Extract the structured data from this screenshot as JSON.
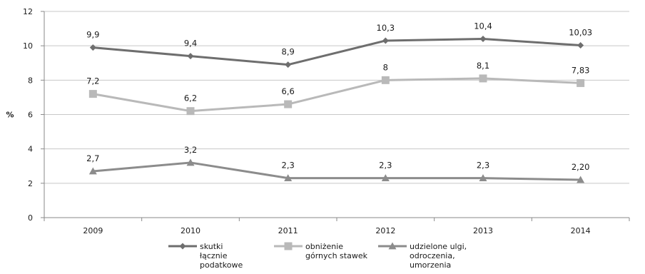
{
  "chart_data": {
    "type": "line",
    "categories": [
      "2009",
      "2010",
      "2011",
      "2012",
      "2013",
      "2014"
    ],
    "ylabel": "%",
    "ylim": [
      0,
      12
    ],
    "yticks": [
      0,
      2,
      4,
      6,
      8,
      10,
      12
    ],
    "grid": true,
    "legend_position": "bottom",
    "series": [
      {
        "name": "skutki łącznie podatkowe",
        "legend_lines": [
          "skutki",
          "łącznie",
          "podatkowe"
        ],
        "values": [
          9.9,
          9.4,
          8.9,
          10.3,
          10.4,
          10.03
        ],
        "labels": [
          "9,9",
          "9,4",
          "8,9",
          "10,3",
          "10,4",
          "10,03"
        ],
        "marker": "diamond",
        "color": "#6e6e6e"
      },
      {
        "name": "obniżenie górnych stawek",
        "legend_lines": [
          "obniżenie",
          "górnych stawek"
        ],
        "values": [
          7.2,
          6.2,
          6.6,
          8.0,
          8.1,
          7.83
        ],
        "labels": [
          "7,2",
          "6,2",
          "6,6",
          "8",
          "8,1",
          "7,83"
        ],
        "marker": "square",
        "color": "#b9b9b9"
      },
      {
        "name": "udzielone ulgi, odroczenia, umorzenia",
        "legend_lines": [
          "udzielone ulgi,",
          "odroczenia,",
          "umorzenia"
        ],
        "values": [
          2.7,
          3.2,
          2.3,
          2.3,
          2.3,
          2.2
        ],
        "labels": [
          "2,7",
          "3,2",
          "2,3",
          "2,3",
          "2,3",
          "2,20"
        ],
        "marker": "triangle",
        "color": "#8c8c8c"
      }
    ]
  }
}
